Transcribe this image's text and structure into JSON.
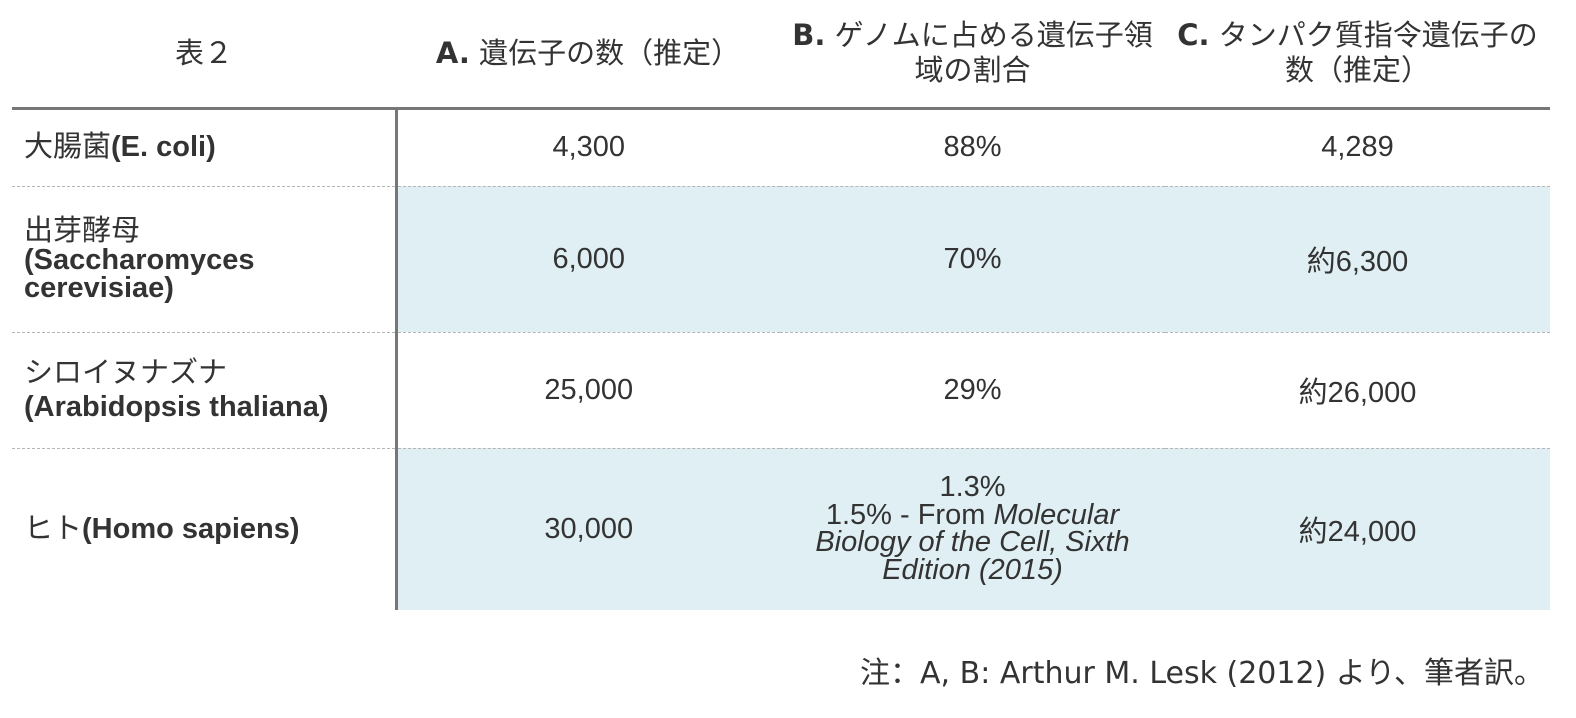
{
  "table": {
    "corner": "表２",
    "columns": [
      {
        "letter": "A.",
        "label": "遺伝子の数（推定）"
      },
      {
        "letter": "B.",
        "label": "ゲノムに占める遺伝子領域の割合"
      },
      {
        "letter": "C.",
        "label": "タンパク質指令遺伝子の数（推定）"
      }
    ],
    "rows": [
      {
        "name_jp": "大腸菌",
        "name_latin": "(E. coli)",
        "a": "4,300",
        "b": "88%",
        "c": "4,289"
      },
      {
        "name_jp": "出芽酵母",
        "name_latin": "(Saccharomyces cerevisiae)",
        "a": "6,000",
        "b": "70%",
        "c": "約6,300"
      },
      {
        "name_jp": "シロイヌナズナ",
        "name_latin": "(Arabidopsis thaliana)",
        "a": "25,000",
        "b": "29%",
        "c": "約26,000"
      },
      {
        "name_jp": "ヒト",
        "name_latin": "(Homo sapiens)",
        "a": "30,000",
        "b_line1": "1.3%",
        "b_line2_prefix": "1.5% - From ",
        "b_line2_italic": "Molecular Biology of the Cell, Sixth Edition (2015)",
        "c": "約24,000"
      }
    ]
  },
  "footnote": "注：A, B: Arthur M. Lesk (2012) より、筆者訳。"
}
